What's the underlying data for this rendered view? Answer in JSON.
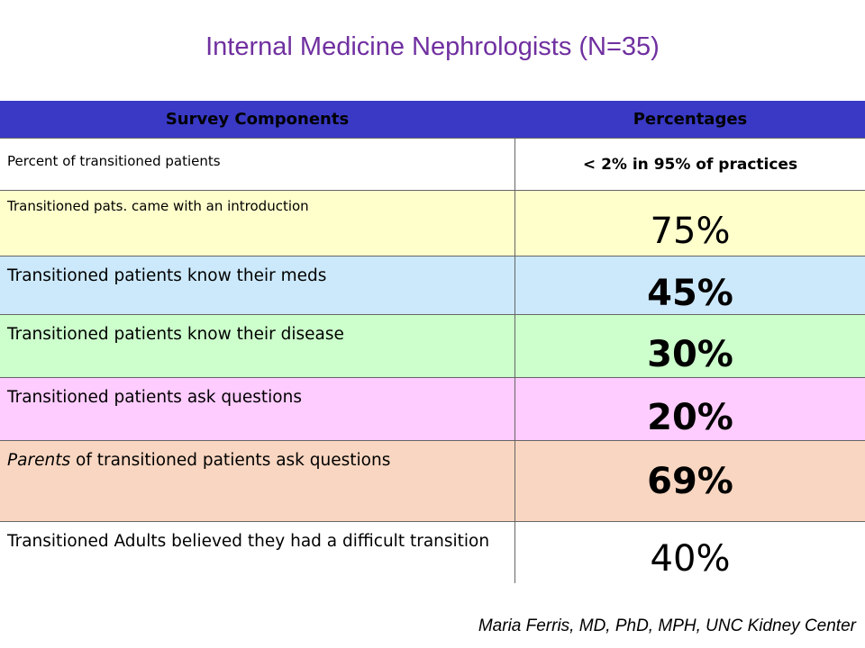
{
  "title": "Internal Medicine Nephrologists (N=35)",
  "table": {
    "header": [
      "Survey Components",
      "Percentages"
    ],
    "rows": [
      {
        "component": "Percent of transitioned patients",
        "percentage": "< 2% in 95% of practices"
      },
      {
        "component": "Transitioned pats. came with an introduction",
        "percentage": "75%"
      },
      {
        "component": "Transitioned patients know their meds",
        "percentage": "45%"
      },
      {
        "component": "Transitioned patients know their disease",
        "percentage": "30%"
      },
      {
        "component": "Transitioned patients ask questions",
        "percentage": "20%"
      },
      {
        "component_emphasis": "Parents",
        "component": "of transitioned patients ask questions",
        "percentage": "69%"
      },
      {
        "component": "Transitioned Adults believed they had a difficult transition",
        "percentage": "40%"
      }
    ]
  },
  "footer": "Maria Ferris, MD, PhD, MPH, UNC Kidney Center"
}
